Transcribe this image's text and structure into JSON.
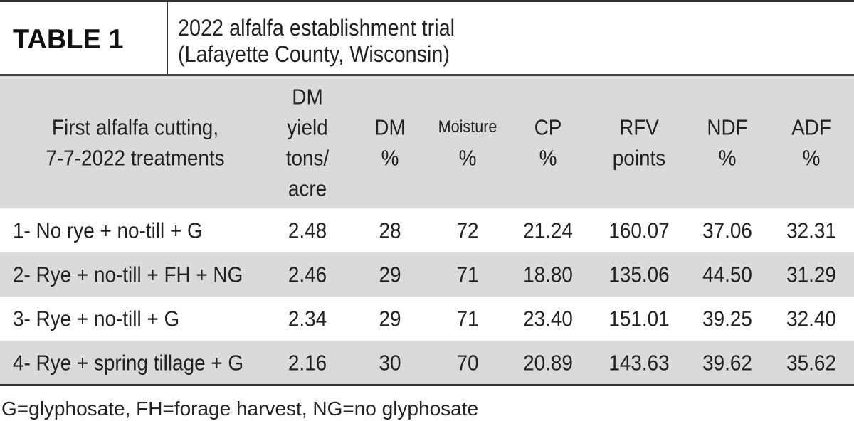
{
  "header": {
    "label": "TABLE 1",
    "title": [
      "2022 alfalfa establishment trial",
      "(Lafayette County, Wisconsin)"
    ]
  },
  "table": {
    "columns": [
      [
        "First alfalfa cutting,",
        "7-7-2022 treatments"
      ],
      [
        "DM",
        "yield",
        "tons/",
        "acre"
      ],
      [
        "DM",
        "%"
      ],
      [
        "Moisture",
        "%"
      ],
      [
        "CP",
        "%"
      ],
      [
        "RFV",
        "points"
      ],
      [
        "NDF",
        "%"
      ],
      [
        "ADF",
        "%"
      ]
    ],
    "rows": [
      [
        "1- No rye + no-till + G",
        "2.48",
        "28",
        "72",
        "21.24",
        "160.07",
        "37.06",
        "32.31"
      ],
      [
        "2- Rye + no-till + FH + NG",
        "2.46",
        "29",
        "71",
        "18.80",
        "135.06",
        "44.50",
        "31.29"
      ],
      [
        "3- Rye + no-till + G",
        "2.34",
        "29",
        "71",
        "23.40",
        "151.01",
        "39.25",
        "32.40"
      ],
      [
        "4- Rye + spring tillage + G",
        "2.16",
        "30",
        "70",
        "20.89",
        "143.63",
        "39.62",
        "35.62"
      ]
    ]
  },
  "footnote": "G=glyphosate, FH=forage harvest, NG=no glyphosate"
}
